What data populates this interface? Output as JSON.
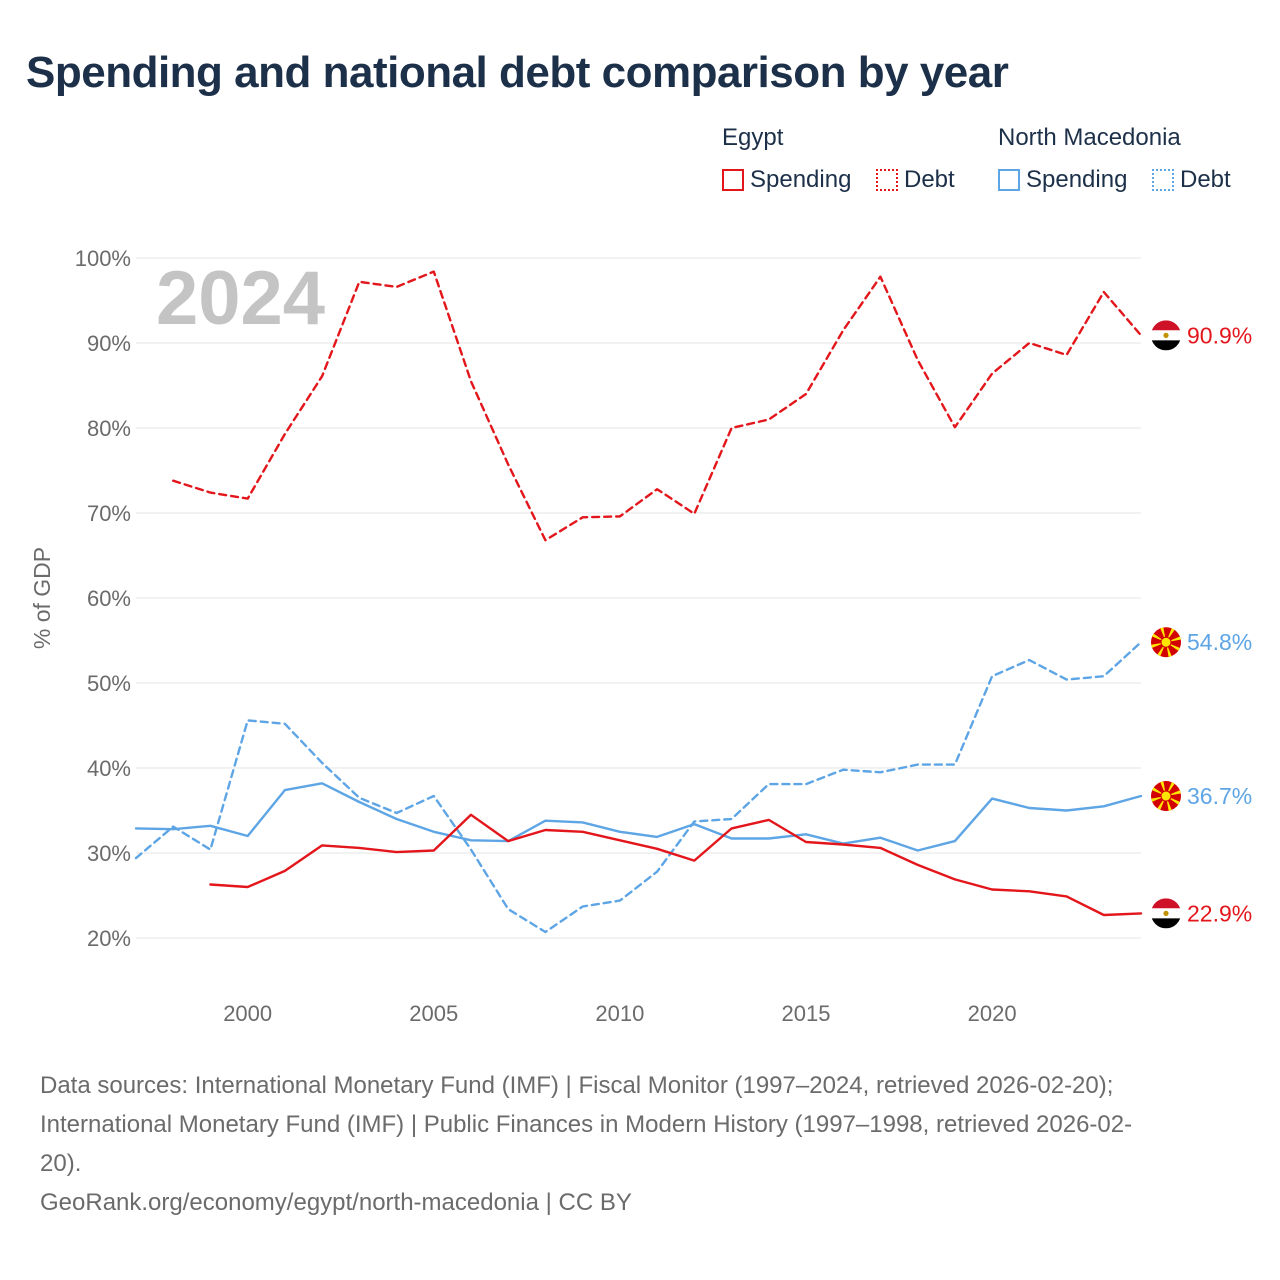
{
  "title": "Spending and national debt comparison by year",
  "legend": {
    "egypt": {
      "name": "Egypt",
      "spending": "Spending",
      "debt": "Debt"
    },
    "north_macedonia": {
      "name": "North Macedonia",
      "spending": "Spending",
      "debt": "Debt"
    }
  },
  "colors": {
    "egypt": "#e3161b",
    "north_macedonia": "#5ea5e5",
    "year_label": "#c4c4c4",
    "title": "#1d3049"
  },
  "year_label": "2024",
  "end_labels": {
    "egypt_debt": "90.9%",
    "north_macedonia_debt": "54.8%",
    "north_macedonia_spending": "36.7%",
    "egypt_spending": "22.9%"
  },
  "chart_data": {
    "type": "line",
    "ylabel": "% of GDP",
    "xlabel": "",
    "ylim": [
      20,
      100
    ],
    "xlim": [
      1997,
      2024
    ],
    "x_ticks": [
      2000,
      2005,
      2010,
      2015,
      2020
    ],
    "x_tick_labels": [
      "2000",
      "2005",
      "2010",
      "2015",
      "2020"
    ],
    "y_ticks": [
      20,
      30,
      40,
      50,
      60,
      70,
      80,
      90,
      100
    ],
    "y_tick_labels": [
      "20%",
      "30%",
      "40%",
      "50%",
      "60%",
      "70%",
      "80%",
      "90%",
      "100%"
    ],
    "series": [
      {
        "name": "Egypt Debt",
        "country": "egypt",
        "style": "dashed",
        "x": [
          1998,
          1999,
          2000,
          2001,
          2002,
          2003,
          2004,
          2005,
          2006,
          2007,
          2008,
          2009,
          2010,
          2011,
          2012,
          2013,
          2014,
          2015,
          2016,
          2017,
          2018,
          2019,
          2020,
          2021,
          2022,
          2023,
          2024
        ],
        "values": [
          73.8,
          72.4,
          71.7,
          79.3,
          86.1,
          97.2,
          96.6,
          98.4,
          85.5,
          75.7,
          66.8,
          69.5,
          69.6,
          72.8,
          69.9,
          80.0,
          81.0,
          84.0,
          91.5,
          97.8,
          88.0,
          80.1,
          86.4,
          90.0,
          88.6,
          96.0,
          90.9
        ]
      },
      {
        "name": "North Macedonia Debt",
        "country": "north_macedonia",
        "style": "dashed",
        "x": [
          1997,
          1998,
          1999,
          2000,
          2001,
          2002,
          2003,
          2004,
          2005,
          2006,
          2007,
          2008,
          2009,
          2010,
          2011,
          2012,
          2013,
          2014,
          2015,
          2016,
          2017,
          2018,
          2019,
          2020,
          2021,
          2022,
          2023,
          2024
        ],
        "values": [
          29.4,
          33.1,
          30.4,
          45.6,
          45.2,
          40.6,
          36.5,
          34.7,
          36.7,
          30.4,
          23.4,
          20.7,
          23.7,
          24.4,
          27.8,
          33.7,
          34.0,
          38.1,
          38.1,
          39.8,
          39.5,
          40.4,
          40.4,
          50.8,
          52.7,
          50.4,
          50.8,
          54.8
        ]
      },
      {
        "name": "North Macedonia Spending",
        "country": "north_macedonia",
        "style": "solid",
        "x": [
          1997,
          1998,
          1999,
          2000,
          2001,
          2002,
          2003,
          2004,
          2005,
          2006,
          2007,
          2008,
          2009,
          2010,
          2011,
          2012,
          2013,
          2014,
          2015,
          2016,
          2017,
          2018,
          2019,
          2020,
          2021,
          2022,
          2023,
          2024
        ],
        "values": [
          32.9,
          32.8,
          33.2,
          32.0,
          37.4,
          38.2,
          36.0,
          34.0,
          32.5,
          31.5,
          31.4,
          33.8,
          33.6,
          32.5,
          31.9,
          33.4,
          31.7,
          31.7,
          32.2,
          31.1,
          31.8,
          30.3,
          31.4,
          36.4,
          35.3,
          35.0,
          35.5,
          36.7
        ]
      },
      {
        "name": "Egypt Spending",
        "country": "egypt",
        "style": "solid",
        "x": [
          1999,
          2000,
          2001,
          2002,
          2003,
          2004,
          2005,
          2006,
          2007,
          2008,
          2009,
          2010,
          2011,
          2012,
          2013,
          2014,
          2015,
          2016,
          2017,
          2018,
          2019,
          2020,
          2021,
          2022,
          2023,
          2024
        ],
        "values": [
          26.3,
          26.0,
          27.9,
          30.9,
          30.6,
          30.1,
          30.3,
          34.5,
          31.4,
          32.7,
          32.5,
          31.5,
          30.5,
          29.1,
          32.9,
          33.9,
          31.3,
          31.0,
          30.6,
          28.6,
          26.9,
          25.7,
          25.5,
          24.9,
          22.7,
          22.9
        ]
      }
    ]
  },
  "sources": {
    "line1": "Data sources: International Monetary Fund (IMF) | Fiscal Monitor (1997–2024, retrieved 2026-02-20);",
    "line2": "International Monetary Fund (IMF) | Public Finances in Modern History (1997–1998, retrieved 2026-02-",
    "line3": "20).",
    "line4": "GeoRank.org/economy/egypt/north-macedonia | CC BY"
  }
}
